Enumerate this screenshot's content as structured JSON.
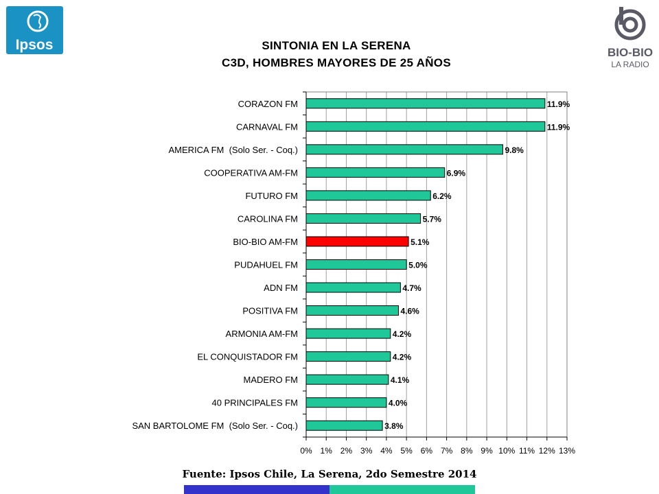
{
  "logos": {
    "ipsos": {
      "text": "Ipsos",
      "bg": "#1a93c4"
    },
    "biobio": {
      "text": "BIO-BIO",
      "subtext": "LA RADIO",
      "color": "#5a5a66"
    }
  },
  "title": {
    "line1": "SINTONIA EN LA SERENA",
    "line2": "C3D, HOMBRES MAYORES DE 25 AÑOS"
  },
  "source": "Fuente: Ipsos Chile, La Serena, 2do Semestre 2014",
  "colors": {
    "bar": "#1fc799",
    "highlight": "#ff0000",
    "band_left": "#3333cc",
    "band_right": "#1fc799"
  },
  "chart_data": {
    "type": "bar",
    "orientation": "horizontal",
    "categories": [
      "CORAZON FM",
      "CARNAVAL FM",
      "AMERICA FM  (Solo Ser. - Coq.)",
      "COOPERATIVA AM-FM",
      "FUTURO FM",
      "CAROLINA FM",
      "BIO-BIO AM-FM",
      "PUDAHUEL FM",
      "ADN FM",
      "POSITIVA FM",
      "ARMONIA AM-FM",
      "EL CONQUISTADOR FM",
      "MADERO FM",
      "40 PRINCIPALES FM",
      "SAN BARTOLOME FM  (Solo Ser. - Coq.)"
    ],
    "values": [
      11.9,
      11.9,
      9.8,
      6.9,
      6.2,
      5.7,
      5.1,
      5.0,
      4.7,
      4.6,
      4.2,
      4.2,
      4.1,
      4.0,
      3.8
    ],
    "data_labels": [
      "11.9%",
      "11.9%",
      "9.8%",
      "6.9%",
      "6.2%",
      "5.7%",
      "5.1%",
      "5.0%",
      "4.7%",
      "4.6%",
      "4.2%",
      "4.2%",
      "4.1%",
      "4.0%",
      "3.8%"
    ],
    "highlight_category": "BIO-BIO AM-FM",
    "xlim": [
      0,
      13
    ],
    "xticks": [
      "0%",
      "1%",
      "2%",
      "3%",
      "4%",
      "5%",
      "6%",
      "7%",
      "8%",
      "9%",
      "10%",
      "11%",
      "12%",
      "13%"
    ],
    "grid": "vertical",
    "legend": "none"
  }
}
